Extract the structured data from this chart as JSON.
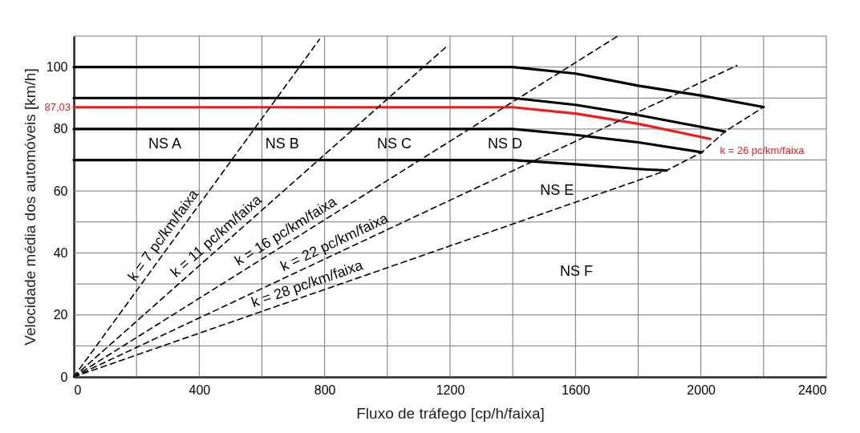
{
  "chart_data": {
    "type": "line",
    "xlabel": "Fluxo de tráfego [cp/h/faixa]",
    "ylabel": "Velocidade média dos automóveis [km/h]",
    "xlim": [
      0,
      2400
    ],
    "ylim": [
      0,
      110
    ],
    "xticks": [
      0,
      {
        "value": 200,
        "label": null
      },
      400,
      {
        "value": 600,
        "label": null
      },
      800,
      {
        "value": 1000,
        "label": null
      },
      1200,
      {
        "value": 1400,
        "label": null
      },
      1600,
      {
        "value": 1800,
        "label": null
      },
      2000,
      {
        "value": 2200,
        "label": null
      },
      2400
    ],
    "yticks": [
      0,
      {
        "value": 10,
        "label": null
      },
      20,
      {
        "value": 30,
        "label": null
      },
      40,
      {
        "value": 50,
        "label": null
      },
      60,
      {
        "value": 70,
        "label": null
      },
      80,
      {
        "value": 90,
        "label": null
      },
      100,
      {
        "value": 110,
        "label": null
      }
    ],
    "grid": true,
    "marker": "none",
    "line_style": "solid",
    "series": [
      {
        "color": "#000000",
        "x": [
          0,
          1400,
          1600,
          1800,
          2000,
          2200
        ],
        "values": [
          100,
          100,
          97.9,
          94.0,
          90.8,
          87.1
        ]
      },
      {
        "color": "#000000",
        "x": [
          0,
          1400,
          1600,
          1800,
          2000,
          2077
        ],
        "values": [
          90,
          90,
          87.8,
          84.5,
          80.7,
          79.2
        ]
      },
      {
        "name": "k = 26 pc/km/faixa",
        "color": "#ee1c1c",
        "x": [
          0,
          1400,
          1600,
          1800,
          2030
        ],
        "values": [
          87.03,
          87.03,
          85.0,
          81.7,
          76.8
        ]
      },
      {
        "color": "#000000",
        "x": [
          0,
          1400,
          1600,
          1800,
          2003
        ],
        "values": [
          80,
          80,
          78.1,
          75.7,
          72.5
        ]
      },
      {
        "color": "#000000",
        "x": [
          0,
          1400,
          1600,
          1800,
          1890
        ],
        "values": [
          70,
          70,
          68.6,
          67.1,
          66.6
        ]
      },
      {
        "name": "k = 7 pc/km/faixa",
        "color": "#000000",
        "line_style": "dashed",
        "x": [
          0,
          784
        ],
        "values": [
          0,
          109
        ]
      },
      {
        "name": "k = 11 pc/km/faixa",
        "color": "#000000",
        "line_style": "dashed",
        "x": [
          0,
          1193
        ],
        "values": [
          0,
          107
        ]
      },
      {
        "name": "k = 16 pc/km/faixa",
        "color": "#000000",
        "line_style": "dashed",
        "x": [
          0,
          1735
        ],
        "values": [
          0,
          110
        ]
      },
      {
        "name": "k = 22 pc/km/faixa",
        "color": "#000000",
        "line_style": "dashed",
        "x": [
          0,
          2115
        ],
        "values": [
          0,
          100.5
        ]
      },
      {
        "name": "k = 28 pc/km/faixa",
        "color": "#000000",
        "line_style": "dashed",
        "x": [
          0,
          1890,
          2003,
          2077,
          2200
        ],
        "values": [
          0,
          66.6,
          72.5,
          79.2,
          87.1
        ]
      }
    ],
    "annotations": [
      {
        "text": "87,03",
        "x": 0,
        "y": 87.03
      },
      "NS A",
      "NS B",
      "NS C",
      "NS D",
      "NS E",
      "NS F"
    ]
  }
}
